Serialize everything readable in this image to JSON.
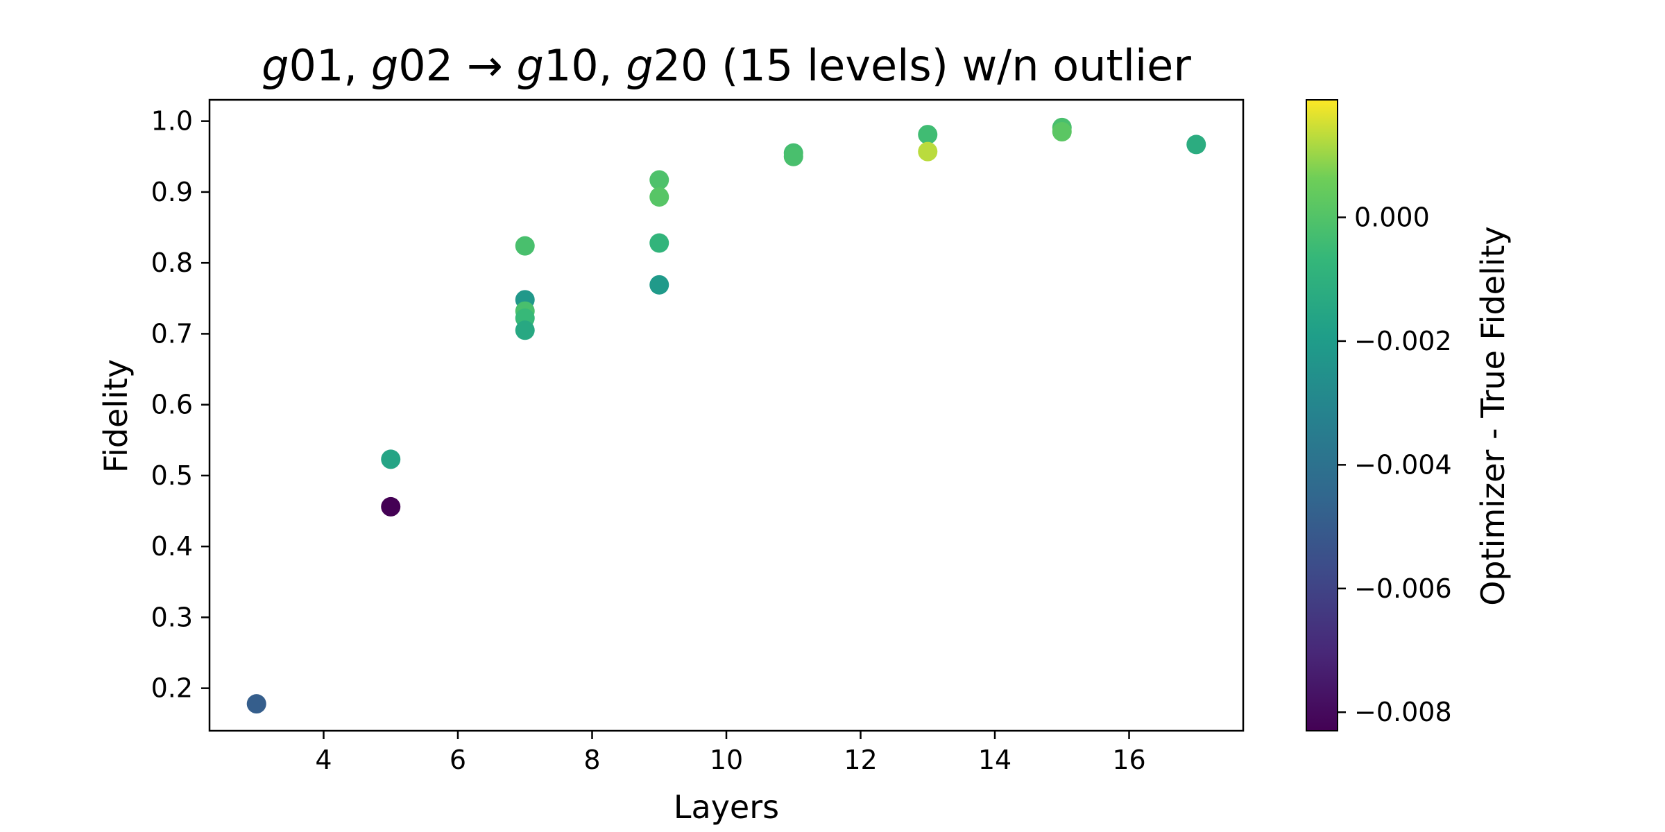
{
  "chart_data": {
    "type": "scatter",
    "title": {
      "g1": "g",
      "t1": "01,",
      "g2": "g",
      "t2": "02",
      "arrow": "→",
      "g3": "g",
      "t3": "10,",
      "g4": "g",
      "t4": "20",
      "rest": "(15 levels) w/n outlier"
    },
    "xlabel": "Layers",
    "ylabel": "Fidelity",
    "colorbar_label": "Optimizer - True Fidelity",
    "xlim": [
      2.3,
      17.7
    ],
    "ylim": [
      0.14,
      1.03
    ],
    "x_ticks": [
      4,
      6,
      8,
      10,
      12,
      14,
      16
    ],
    "y_ticks": [
      0.2,
      0.3,
      0.4,
      0.5,
      0.6,
      0.7,
      0.8,
      0.9,
      1.0
    ],
    "y_tick_labels": [
      "0.2",
      "0.3",
      "0.4",
      "0.5",
      "0.6",
      "0.7",
      "0.8",
      "0.9",
      "1.0"
    ],
    "colorbar_range": [
      -0.0083,
      0.0019
    ],
    "colorbar_ticks": [
      0.0,
      -0.002,
      -0.004,
      -0.006,
      -0.008
    ],
    "colorbar_tick_labels": [
      "0.000",
      "−0.002",
      "−0.004",
      "−0.006",
      "−0.008"
    ],
    "colormap": "viridis",
    "grid": false,
    "points": [
      {
        "x": 3,
        "y": 0.178,
        "c": -0.0049
      },
      {
        "x": 5,
        "y": 0.523,
        "c": -0.0016
      },
      {
        "x": 5,
        "y": 0.456,
        "c": -0.0083
      },
      {
        "x": 7,
        "y": 0.824,
        "c": -0.0002
      },
      {
        "x": 7,
        "y": 0.748,
        "c": -0.0022
      },
      {
        "x": 7,
        "y": 0.732,
        "c": -0.0002
      },
      {
        "x": 7,
        "y": 0.722,
        "c": -0.0006
      },
      {
        "x": 7,
        "y": 0.705,
        "c": -0.0014
      },
      {
        "x": 9,
        "y": 0.917,
        "c": -0.0001
      },
      {
        "x": 9,
        "y": 0.893,
        "c": 0.0001
      },
      {
        "x": 9,
        "y": 0.828,
        "c": -0.0008
      },
      {
        "x": 9,
        "y": 0.769,
        "c": -0.0021
      },
      {
        "x": 11,
        "y": 0.955,
        "c": -0.0003
      },
      {
        "x": 11,
        "y": 0.95,
        "c": -0.0002
      },
      {
        "x": 13,
        "y": 0.981,
        "c": -0.0004
      },
      {
        "x": 13,
        "y": 0.957,
        "c": 0.0013
      },
      {
        "x": 15,
        "y": 0.991,
        "c": -0.0002
      },
      {
        "x": 15,
        "y": 0.985,
        "c": 0.0002
      },
      {
        "x": 17,
        "y": 0.967,
        "c": -0.0012
      }
    ]
  }
}
